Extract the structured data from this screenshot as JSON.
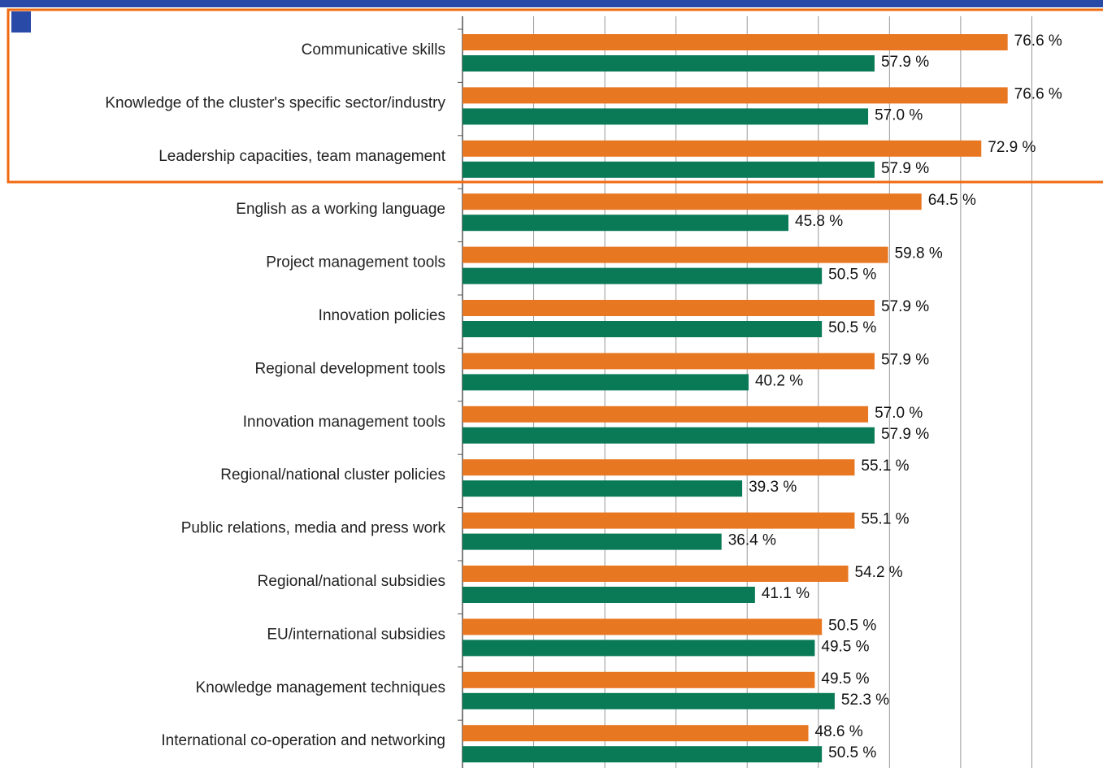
{
  "chart_data": {
    "type": "hbar",
    "categories": [
      "Communicative skills",
      "Knowledge of the cluster's specific sector/industry",
      "Leadership capacities, team management",
      "English as a working language",
      "Project management tools",
      "Innovation policies",
      "Regional development tools",
      "Innovation management tools",
      "Regional/national cluster policies",
      "Public relations, media and press work",
      "Regional/national subsidies",
      "EU/international subsidies",
      "Knowledge management techniques",
      "International co-operation and networking"
    ],
    "series": [
      {
        "color": "#e87722",
        "values": [
          76.6,
          76.6,
          72.9,
          64.5,
          59.8,
          57.9,
          57.9,
          57.0,
          55.1,
          55.1,
          54.2,
          50.5,
          49.5,
          48.6
        ],
        "value_labels": [
          "76.6 %",
          "76.6 %",
          "72.9 %",
          "64.5 %",
          "59.8 %",
          "57.9 %",
          "57.9 %",
          "57.0 %",
          "55.1 %",
          "55.1 %",
          "54.2 %",
          "50.5 %",
          "49.5 %",
          "48.6 %"
        ]
      },
      {
        "color": "#0a7a56",
        "values": [
          57.9,
          57.0,
          57.9,
          45.8,
          50.5,
          50.5,
          40.2,
          57.9,
          39.3,
          36.4,
          41.1,
          49.5,
          52.3,
          50.5
        ],
        "value_labels": [
          "57.9 %",
          "57.0 %",
          "57.9 %",
          "45.8 %",
          "50.5 %",
          "50.5 %",
          "40.2 %",
          "57.9 %",
          "39.3 %",
          "36.4 %",
          "41.1 %",
          "49.5 %",
          "52.3 %",
          "50.5 %"
        ]
      }
    ],
    "xlim": [
      0,
      90
    ],
    "xticks": [
      0,
      10,
      20,
      30,
      40,
      50,
      60,
      70,
      80
    ],
    "grid": true
  }
}
